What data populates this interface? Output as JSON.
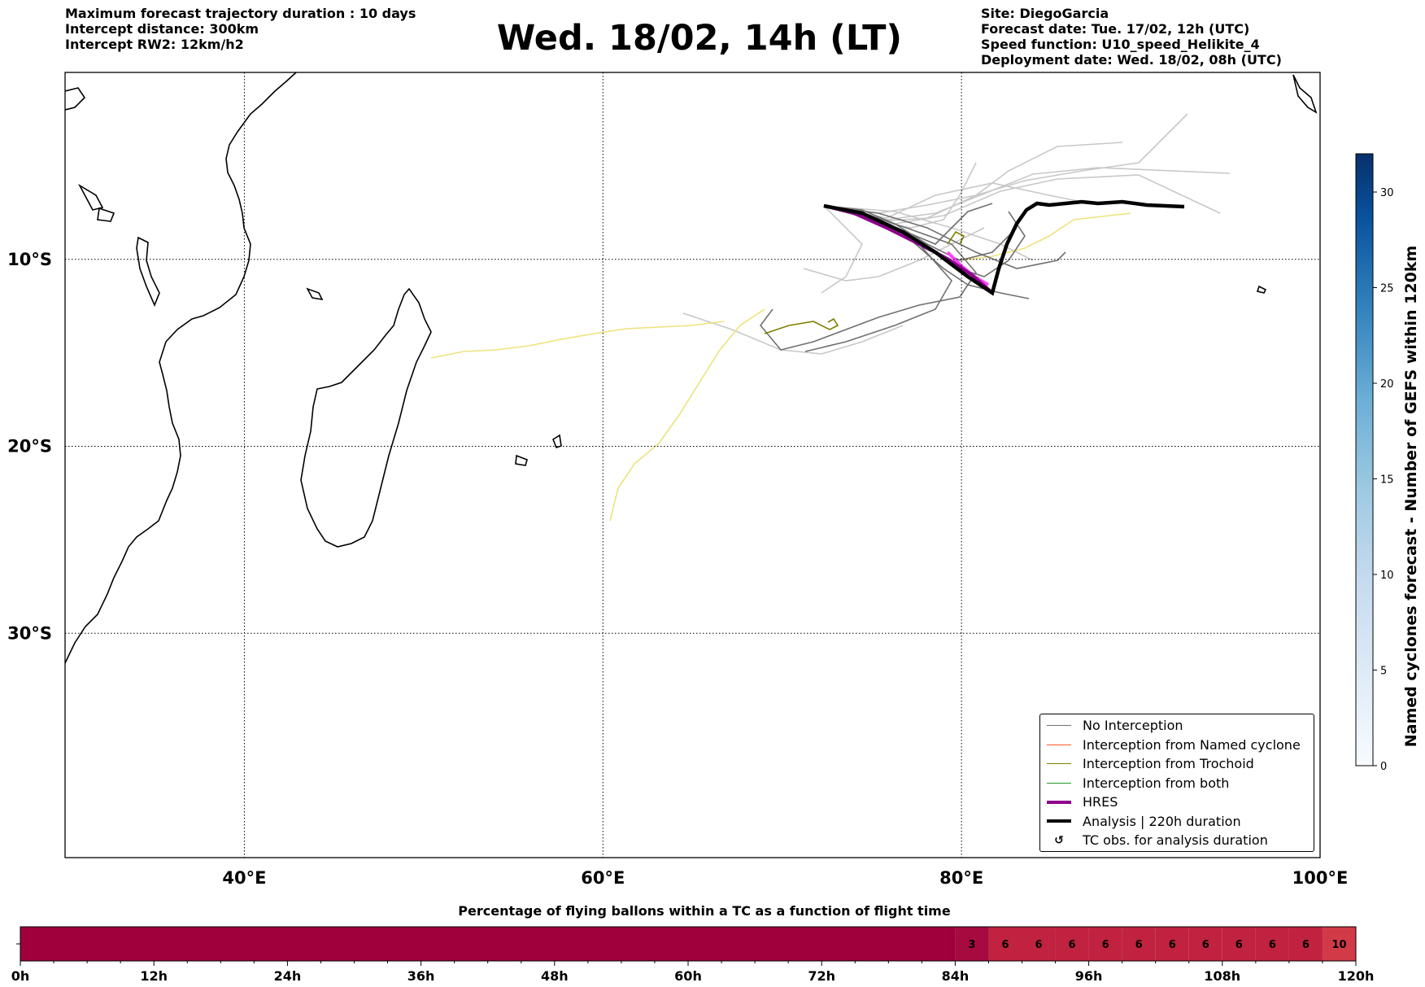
{
  "header_left": [
    "Maximum forecast trajectory duration : 10 days",
    "Intercept distance: 300km",
    "Intercept RW2: 12km/h2"
  ],
  "title": "Wed. 18/02, 14h (LT)",
  "header_right": [
    "Site: DiegoGarcia",
    "Forecast date: Tue. 17/02, 12h (UTC)",
    "Speed function: U10_speed_Helikite_4",
    "Deployment date: Wed. 18/02, 08h (UTC)"
  ],
  "map": {
    "lon_range": [
      30,
      100
    ],
    "lat_range": [
      -42,
      0
    ],
    "lon_ticks": [
      {
        "value": 40,
        "label": "40°E"
      },
      {
        "value": 60,
        "label": "60°E"
      },
      {
        "value": 80,
        "label": "80°E"
      },
      {
        "value": 100,
        "label": "100°E"
      }
    ],
    "lat_ticks": [
      {
        "value": -10,
        "label": "10°S"
      },
      {
        "value": -20,
        "label": "20°S"
      },
      {
        "value": -30,
        "label": "30°S"
      }
    ],
    "grid": "dotted",
    "colors": {
      "no_interception": "#707070",
      "ensemble_light": "#c8c8c8",
      "named_cyclone": "#ff5a1e",
      "trochoid": "#808000",
      "both": "#1e9a1e",
      "hres": "#8b008b",
      "analysis": "#000000",
      "yellow_track": "#eee27a",
      "magenta_track": "#ff40ff"
    }
  },
  "legend": [
    {
      "label": "No Interception",
      "color": "#707070",
      "style": "thin"
    },
    {
      "label": "Interception from Named cyclone",
      "color": "#ff5a1e",
      "style": "thin"
    },
    {
      "label": "Interception from Trochoid",
      "color": "#808000",
      "style": "thin"
    },
    {
      "label": "Interception from both",
      "color": "#1e9a1e",
      "style": "thin"
    },
    {
      "label": "HRES",
      "color": "#8b008b",
      "style": "thick"
    },
    {
      "label": "Analysis | 220h duration",
      "color": "#000000",
      "style": "thick"
    },
    {
      "label": "TC obs. for analysis duration",
      "color": "#000000",
      "style": "symbol",
      "icon": "loop-arrow-icon"
    }
  ],
  "colorbar": {
    "label": "Named cyclones forecast - Number of GEFS within 120km",
    "min": 0,
    "max": 32,
    "ticks": [
      0,
      5,
      10,
      15,
      20,
      25,
      30
    ],
    "colormap": "Blues"
  },
  "time_bar": {
    "title": "Percentage of flying ballons within a TC as a function of flight time",
    "hours_total": 120,
    "tick_labels": [
      "0h",
      "12h",
      "24h",
      "36h",
      "48h",
      "60h",
      "72h",
      "84h",
      "96h",
      "108h",
      "120h"
    ],
    "cells": [
      {
        "from": 0,
        "to": 84,
        "value": "",
        "color": "#a0003c"
      },
      {
        "from": 84,
        "to": 87,
        "value": "3",
        "color": "#a60a3e"
      },
      {
        "from": 87,
        "to": 90,
        "value": "6",
        "color": "#c0223f"
      },
      {
        "from": 90,
        "to": 93,
        "value": "6",
        "color": "#c0223f"
      },
      {
        "from": 93,
        "to": 96,
        "value": "6",
        "color": "#c0223f"
      },
      {
        "from": 96,
        "to": 99,
        "value": "6",
        "color": "#c0223f"
      },
      {
        "from": 99,
        "to": 102,
        "value": "6",
        "color": "#c0223f"
      },
      {
        "from": 102,
        "to": 105,
        "value": "6",
        "color": "#c0223f"
      },
      {
        "from": 105,
        "to": 108,
        "value": "6",
        "color": "#c0223f"
      },
      {
        "from": 108,
        "to": 111,
        "value": "6",
        "color": "#c0223f"
      },
      {
        "from": 111,
        "to": 114,
        "value": "6",
        "color": "#c0223f"
      },
      {
        "from": 114,
        "to": 117,
        "value": "6",
        "color": "#c0223f"
      },
      {
        "from": 117,
        "to": 120,
        "value": "10",
        "color": "#d23a48"
      }
    ]
  }
}
